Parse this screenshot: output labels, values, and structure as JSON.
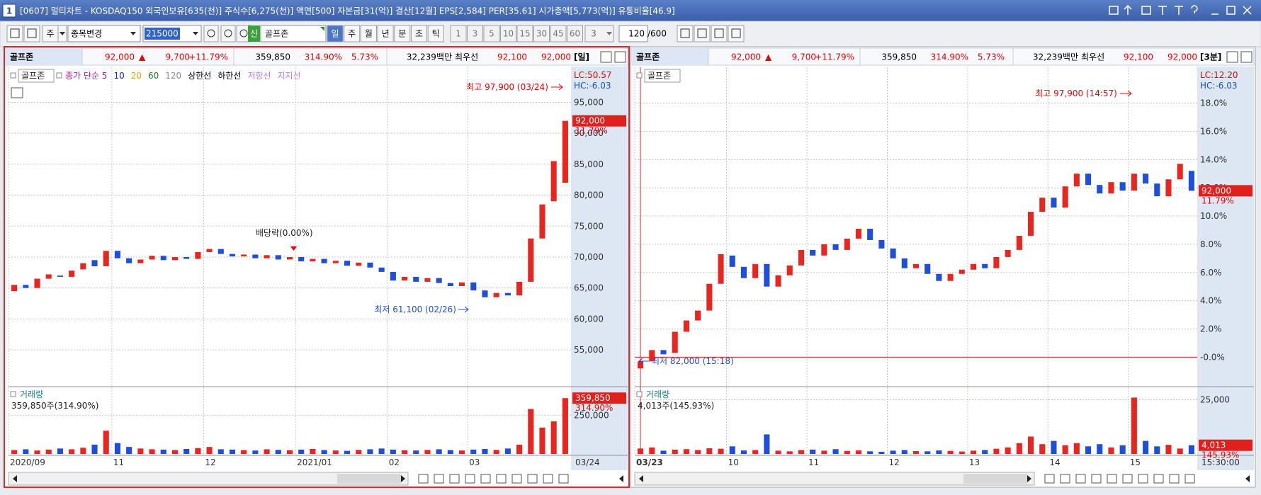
{
  "window": {
    "badge": "1",
    "title": "[0607] 멀티차트 - KOSDAQ150 외국인보유[635(천)] 주식수[6,275(천)] 액면[500] 자본금[31(억)] 결산[12월] EPS[2,584] PER[35.61] 시가총액[5,773(억)] 유통비율[46.9]"
  },
  "toolbar": {
    "market": "주",
    "list": "종목변경",
    "code": "215000",
    "new_badge": "신",
    "name": "골프존",
    "periods": [
      "일",
      "주",
      "월",
      "년",
      "분",
      "초",
      "틱"
    ],
    "selected_period": "일",
    "intervals": [
      "1",
      "3",
      "5",
      "10",
      "15",
      "30",
      "45",
      "60"
    ],
    "interval_select": "3",
    "count": "120",
    "count_max": "/600"
  },
  "panels": [
    {
      "info": {
        "name": "골프존",
        "price": "92,000",
        "arrow": "▲",
        "change": "9,700",
        "change_pct": "+11.79%",
        "volume": "359,850",
        "volume_pct": "314.90%",
        "turnover": "5.73%",
        "amount": "32,239백만",
        "best_label": "최우선",
        "bid": "92,100",
        "ask": "92,000",
        "period": "[일]"
      },
      "legend_name": "골프존",
      "indicators": [
        {
          "name": "종가 단순 5",
          "color": "#c0189c"
        },
        {
          "name": "10",
          "color": "#2020c0"
        },
        {
          "name": "20",
          "color": "#f0a000"
        },
        {
          "name": "60",
          "color": "#208020"
        },
        {
          "name": "120",
          "color": "#909090"
        },
        {
          "name": "상한선",
          "color": "#000000"
        },
        {
          "name": "하한선",
          "color": "#000000"
        },
        {
          "name": "저항선",
          "color": "#c080e0"
        },
        {
          "name": "지지선",
          "color": "#c080e0"
        }
      ],
      "price_chart": {
        "type": "candlestick",
        "categories": [
          "2020/09",
          null,
          null,
          null,
          null,
          null,
          null,
          null,
          null,
          "11",
          null,
          null,
          null,
          null,
          null,
          null,
          null,
          "12",
          null,
          null,
          null,
          null,
          null,
          null,
          null,
          "2021/01",
          null,
          null,
          null,
          null,
          null,
          null,
          null,
          "02",
          null,
          null,
          null,
          null,
          null,
          null,
          "03",
          null,
          null,
          null,
          null,
          null,
          null,
          null,
          null
        ],
        "last_label": "03/24",
        "candles": [
          [
            64500,
            65500
          ],
          [
            65500,
            65000
          ],
          [
            65000,
            66500
          ],
          [
            66500,
            67200
          ],
          [
            67000,
            66800
          ],
          [
            66800,
            67800
          ],
          [
            68000,
            69000
          ],
          [
            69500,
            68500
          ],
          [
            68500,
            71000
          ],
          [
            71000,
            69800
          ],
          [
            69800,
            69000
          ],
          [
            69000,
            69600
          ],
          [
            69600,
            70200
          ],
          [
            70200,
            69500
          ],
          [
            69500,
            70000
          ],
          [
            70000,
            69700
          ],
          [
            69700,
            70800
          ],
          [
            70800,
            71300
          ],
          [
            71300,
            70500
          ],
          [
            70500,
            70100
          ],
          [
            70100,
            70400
          ],
          [
            70400,
            69800
          ],
          [
            69800,
            70300
          ],
          [
            70300,
            69600
          ],
          [
            69600,
            70000
          ],
          [
            70000,
            69300
          ],
          [
            69300,
            69700
          ],
          [
            69700,
            69000
          ],
          [
            69000,
            69400
          ],
          [
            69400,
            68600
          ],
          [
            68600,
            69100
          ],
          [
            69100,
            68300
          ],
          [
            68300,
            67600
          ],
          [
            67600,
            66200
          ],
          [
            66200,
            66800
          ],
          [
            66800,
            66000
          ],
          [
            66000,
            66600
          ],
          [
            66600,
            65800
          ],
          [
            65800,
            65300
          ],
          [
            65300,
            65900
          ],
          [
            65900,
            64600
          ],
          [
            64600,
            63500
          ],
          [
            63500,
            64200
          ],
          [
            64200,
            63800
          ],
          [
            63800,
            66000
          ],
          [
            66000,
            73000
          ],
          [
            73000,
            78500
          ],
          [
            79000,
            85500
          ],
          [
            82000,
            92000
          ]
        ],
        "up_color": "#e8261f",
        "down_color": "#1f4fd8",
        "ylim": [
          49400,
          100200
        ],
        "yticks": [
          {
            "value": 55000,
            "label": "55,000"
          },
          {
            "value": 60000,
            "label": "60,000"
          },
          {
            "value": 65000,
            "label": "65,000"
          },
          {
            "value": 70000,
            "label": "70,000"
          },
          {
            "value": 75000,
            "label": "75,000"
          },
          {
            "value": 80000,
            "label": "80,000"
          },
          {
            "value": 85000,
            "label": "85,000"
          },
          {
            "value": 90000,
            "label": "90,000"
          },
          {
            "value": 95000,
            "label": "95,000"
          }
        ],
        "lc": "LC:50.57",
        "hc": "HC:-6.03",
        "last_price_label": "92,000",
        "last_pct_label": "11.79%",
        "high_note": "최고 97,900 (03/24)",
        "low_note": "최저 61,100 (02/26)",
        "event_note": "배당락(0.00%)"
      },
      "volume_chart": {
        "type": "bar",
        "title": "거래량",
        "summary": "359,850주(314.90%)",
        "values": [
          25000,
          30000,
          22000,
          28000,
          35000,
          30000,
          40000,
          60000,
          150000,
          70000,
          45000,
          35000,
          30000,
          28000,
          25000,
          32000,
          38000,
          45000,
          30000,
          28000,
          25000,
          22000,
          30000,
          26000,
          24000,
          28000,
          32000,
          25000,
          22000,
          20000,
          26000,
          30000,
          35000,
          28000,
          24000,
          22000,
          26000,
          30000,
          25000,
          22000,
          28000,
          32000,
          26000,
          35000,
          60000,
          290000,
          170000,
          210000,
          359850
        ],
        "ylim": [
          0,
          411000
        ],
        "yticks": [
          {
            "value": 250000,
            "label": "250,000"
          }
        ],
        "last_label": "359,850",
        "last_pct_label": "314.90%"
      }
    },
    {
      "info": {
        "name": "골프존",
        "price": "92,000",
        "arrow": "▲",
        "change": "9,700",
        "change_pct": "+11.79%",
        "volume": "359,850",
        "volume_pct": "314.90%",
        "turnover": "5.73%",
        "amount": "32,239백만",
        "best_label": "최우선",
        "bid": "92,100",
        "ask": "92,000",
        "period": "[3분]"
      },
      "legend_name": "골프존",
      "price_chart": {
        "type": "candlestick",
        "categories": [
          "03/23",
          null,
          null,
          null,
          null,
          null,
          null,
          null,
          "10",
          null,
          null,
          null,
          null,
          null,
          null,
          "11",
          null,
          null,
          null,
          null,
          null,
          null,
          "12",
          null,
          null,
          null,
          null,
          null,
          null,
          "13",
          null,
          null,
          null,
          null,
          null,
          null,
          "14",
          null,
          null,
          null,
          null,
          null,
          null,
          "15",
          null,
          null,
          null,
          null,
          null
        ],
        "last_label": "15:30:00",
        "candles": [
          [
            -0.8,
            -0.3
          ],
          [
            -0.3,
            0.5
          ],
          [
            0.5,
            0.2
          ],
          [
            0.3,
            1.8
          ],
          [
            1.8,
            2.6
          ],
          [
            2.6,
            3.3
          ],
          [
            3.3,
            5.2
          ],
          [
            5.2,
            7.3
          ],
          [
            7.2,
            6.4
          ],
          [
            6.4,
            5.6
          ],
          [
            5.6,
            6.6
          ],
          [
            6.6,
            5.0
          ],
          [
            5.0,
            5.8
          ],
          [
            5.8,
            6.5
          ],
          [
            6.5,
            7.6
          ],
          [
            7.6,
            7.2
          ],
          [
            7.2,
            8.0
          ],
          [
            8.0,
            7.6
          ],
          [
            7.6,
            8.4
          ],
          [
            8.4,
            9.1
          ],
          [
            9.1,
            8.3
          ],
          [
            8.3,
            7.7
          ],
          [
            7.7,
            7.0
          ],
          [
            7.0,
            6.3
          ],
          [
            6.3,
            6.6
          ],
          [
            6.6,
            5.9
          ],
          [
            5.9,
            5.4
          ],
          [
            5.4,
            5.9
          ],
          [
            5.9,
            6.2
          ],
          [
            6.2,
            6.6
          ],
          [
            6.6,
            6.3
          ],
          [
            6.3,
            7.1
          ],
          [
            7.1,
            7.6
          ],
          [
            7.6,
            8.6
          ],
          [
            8.6,
            10.3
          ],
          [
            10.3,
            11.3
          ],
          [
            11.3,
            10.6
          ],
          [
            10.6,
            12.1
          ],
          [
            12.1,
            13.0
          ],
          [
            13.0,
            12.2
          ],
          [
            12.2,
            11.6
          ],
          [
            11.6,
            12.4
          ],
          [
            12.4,
            11.8
          ],
          [
            11.8,
            13.0
          ],
          [
            13.0,
            12.3
          ],
          [
            12.3,
            11.4
          ],
          [
            11.4,
            12.6
          ],
          [
            12.6,
            13.7
          ],
          [
            13.2,
            11.79
          ]
        ],
        "up_color": "#e8261f",
        "down_color": "#1f4fd8",
        "ylim": [
          -1.94,
          20.34
        ],
        "yticks": [
          {
            "value": 0,
            "label": "-0.0%"
          },
          {
            "value": 2,
            "label": "2.0%"
          },
          {
            "value": 4,
            "label": "4.0%"
          },
          {
            "value": 6,
            "label": "6.0%"
          },
          {
            "value": 8,
            "label": "8.0%"
          },
          {
            "value": 10,
            "label": "10.0%"
          },
          {
            "value": 12,
            "label": "12.0%"
          },
          {
            "value": 14,
            "label": "14.0%"
          },
          {
            "value": 16,
            "label": "16.0%"
          },
          {
            "value": 18,
            "label": "18.0%"
          }
        ],
        "low_line_color": "#e02020",
        "lc": "LC:12.20",
        "hc": "HC:-6.03",
        "last_price_label": "92,000",
        "last_pct_label": "11.79%",
        "high_note": "최고 97,900 (14:57)",
        "low_note": "최저 82,000 (15:18)"
      },
      "volume_chart": {
        "type": "bar",
        "title": "거래량",
        "summary": "4,013주(145.93%)",
        "values": [
          2500,
          3000,
          1500,
          2000,
          2200,
          1800,
          2600,
          2400,
          3500,
          1600,
          1800,
          9000,
          1500,
          1200,
          1800,
          2000,
          1500,
          2200,
          1400,
          1600,
          1200,
          1000,
          1500,
          1800,
          1300,
          1200,
          1600,
          1400,
          1100,
          1500,
          1800,
          2400,
          3000,
          5000,
          8000,
          4500,
          6000,
          4000,
          5000,
          3500,
          4500,
          3000,
          4000,
          26000,
          6000,
          3500,
          4200,
          2500,
          4013
        ],
        "ylim": [
          0,
          29400
        ],
        "yticks": [
          {
            "value": 25000,
            "label": "25,000"
          }
        ],
        "last_label": "4,013",
        "last_pct_label": "145.93%"
      }
    }
  ]
}
